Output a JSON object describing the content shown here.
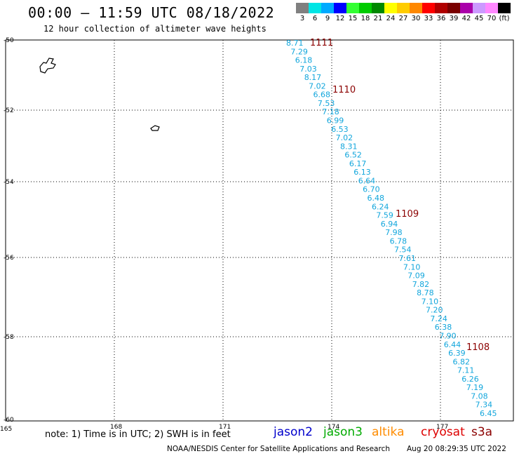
{
  "header": {
    "title": "00:00 – 11:59 UTC 08/18/2022",
    "subtitle": "12 hour collection of altimeter wave heights"
  },
  "colorbar": {
    "labels": [
      "3",
      "6",
      "9",
      "12",
      "15",
      "18",
      "21",
      "24",
      "27",
      "30",
      "33",
      "36",
      "39",
      "42",
      "45",
      "70",
      "(ft)"
    ],
    "colors": [
      "#808080",
      "#00e5e5",
      "#00aaff",
      "#0000ff",
      "#33ff33",
      "#00cc00",
      "#008800",
      "#ffff00",
      "#ffcc00",
      "#ff8800",
      "#ff0000",
      "#b00000",
      "#7a0000",
      "#aa00aa",
      "#cc99ff",
      "#ff88ff",
      "#000000"
    ]
  },
  "map": {
    "lat_labels": [
      "-50",
      "-52",
      "-54",
      "-56",
      "-58",
      "-60"
    ],
    "lon_labels": [
      "165",
      "168",
      "171",
      "174",
      "177"
    ],
    "wave_color": "#12a6dc",
    "pass_color": "#8b0000",
    "wave_heights": [
      "8.71",
      "7.29",
      "6.18",
      "7.03",
      "8.17",
      "7.02",
      "6.68",
      "7.53",
      "7.18",
      "6.99",
      "6.53",
      "7.02",
      "8.31",
      "6.52",
      "6.17",
      "6.13",
      "6.64",
      "6.70",
      "6.48",
      "6.24",
      "7.59",
      "6.94",
      "7.98",
      "6.78",
      "7.54",
      "7.61",
      "7.10",
      "7.09",
      "7.82",
      "8.78",
      "7.10",
      "7.20",
      "7.24",
      "6.38",
      "7.90",
      "6.44",
      "6.39",
      "6.82",
      "7.11",
      "6.26",
      "7.19",
      "7.08",
      "7.34",
      "6.45"
    ],
    "pass_ids": [
      "1111",
      "1110",
      "1109",
      "1108"
    ]
  },
  "footer": {
    "note": "note: 1) Time is in UTC; 2) SWH is in feet",
    "satellites": [
      {
        "name": "jason2",
        "color": "#0000cc"
      },
      {
        "name": "jason3",
        "color": "#00aa00"
      },
      {
        "name": "altika",
        "color": "#ff8c00"
      },
      {
        "name": "cryosat",
        "color": "#dd0000"
      },
      {
        "name": "s3a",
        "color": "#8b0000"
      }
    ],
    "credit": "NOAA/NESDIS Center for Satellite Applications and Research",
    "timestamp": "Aug 20 08:29:35 UTC 2022"
  }
}
